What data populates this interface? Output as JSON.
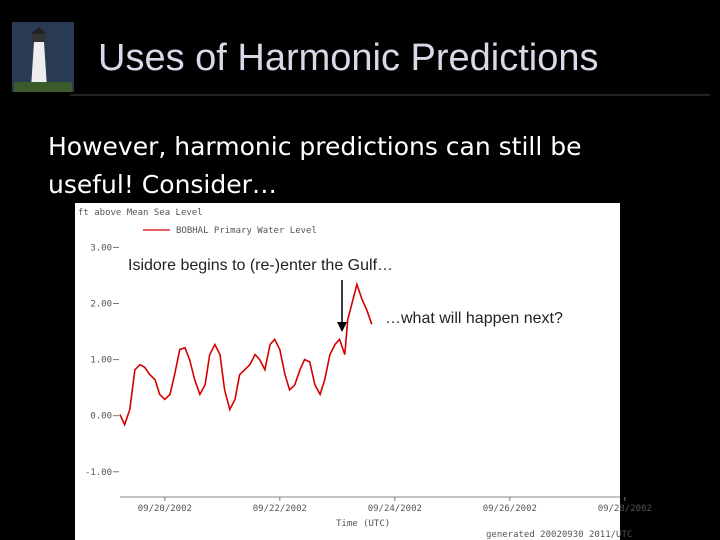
{
  "slide": {
    "title": "Uses of Harmonic Predictions",
    "body": [
      "However, harmonic predictions can still be",
      "useful!  Consider…"
    ]
  },
  "chart_data": {
    "type": "line",
    "ylabel": "ft above Mean Sea Level",
    "xlabel": "Time (UTC)",
    "footnote": "generated 20020930 2011/UTC",
    "annotations": [
      "Isidore begins to (re-)enter the Gulf…",
      "…what will happen next?"
    ],
    "xlim": [
      19.22,
      28.6
    ],
    "xticks": [
      {
        "value": 20,
        "label": "09/20/2002"
      },
      {
        "value": 22,
        "label": "09/22/2002"
      },
      {
        "value": 24,
        "label": "09/24/2002"
      },
      {
        "value": 26,
        "label": "09/26/2002"
      },
      {
        "value": 28,
        "label": "09/28/2002"
      }
    ],
    "ylim": [
      -1.45,
      3.4
    ],
    "yticks": [
      {
        "value": -1,
        "label": "-1.00"
      },
      {
        "value": 0,
        "label": "0.00"
      },
      {
        "value": 1,
        "label": "1.00"
      },
      {
        "value": 2,
        "label": "2.00"
      },
      {
        "value": 3,
        "label": "3.00"
      }
    ],
    "x": [
      19.22,
      19.3,
      19.39,
      19.48,
      19.57,
      19.65,
      19.74,
      19.83,
      19.91,
      20.0,
      20.09,
      20.17,
      20.26,
      20.35,
      20.43,
      20.52,
      20.61,
      20.7,
      20.78,
      20.87,
      20.96,
      21.04,
      21.13,
      21.22,
      21.3,
      21.39,
      21.48,
      21.57,
      21.65,
      21.74,
      21.83,
      21.91,
      22.0,
      22.09,
      22.17,
      22.26,
      22.35,
      22.43,
      22.52,
      22.61,
      22.7,
      22.78,
      22.87,
      22.96,
      23.04,
      23.13,
      23.18,
      23.25,
      23.34,
      23.43,
      23.51,
      23.6
    ],
    "series": [
      {
        "name": "BOBHAL Primary Water Level",
        "color": "#d40000",
        "values": [
          0.02,
          -0.16,
          0.11,
          0.82,
          0.91,
          0.86,
          0.73,
          0.64,
          0.38,
          0.29,
          0.38,
          0.73,
          1.18,
          1.21,
          1.0,
          0.64,
          0.38,
          0.55,
          1.09,
          1.27,
          1.09,
          0.46,
          0.11,
          0.29,
          0.73,
          0.82,
          0.91,
          1.09,
          1.0,
          0.82,
          1.27,
          1.36,
          1.18,
          0.73,
          0.46,
          0.55,
          0.82,
          1.0,
          0.96,
          0.55,
          0.38,
          0.64,
          1.09,
          1.27,
          1.36,
          1.09,
          1.71,
          1.98,
          2.34,
          2.07,
          1.89,
          1.63
        ]
      }
    ]
  }
}
